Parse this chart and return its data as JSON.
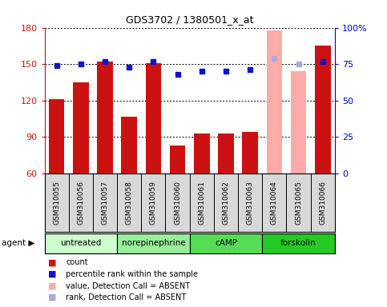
{
  "title": "GDS3702 / 1380501_x_at",
  "samples": [
    "GSM310055",
    "GSM310056",
    "GSM310057",
    "GSM310058",
    "GSM310059",
    "GSM310060",
    "GSM310061",
    "GSM310062",
    "GSM310063",
    "GSM310064",
    "GSM310065",
    "GSM310066"
  ],
  "bar_values": [
    121,
    135,
    152,
    107,
    151,
    83,
    93,
    93,
    94,
    178,
    144,
    165
  ],
  "bar_absent": [
    false,
    false,
    false,
    false,
    false,
    false,
    false,
    false,
    false,
    true,
    true,
    false
  ],
  "percentile_values": [
    74,
    75,
    77,
    73,
    77,
    68,
    70,
    70,
    71,
    79,
    75,
    77
  ],
  "percentile_absent": [
    false,
    false,
    false,
    false,
    false,
    false,
    false,
    false,
    false,
    true,
    true,
    false
  ],
  "agents": [
    {
      "label": "untreated",
      "samples": [
        0,
        1,
        2
      ],
      "color": "#ccffcc"
    },
    {
      "label": "norepinephrine",
      "samples": [
        3,
        4,
        5
      ],
      "color": "#99ee99"
    },
    {
      "label": "cAMP",
      "samples": [
        6,
        7,
        8
      ],
      "color": "#55dd55"
    },
    {
      "label": "forskolin",
      "samples": [
        9,
        10,
        11
      ],
      "color": "#22cc22"
    }
  ],
  "left_ylim": [
    60,
    180
  ],
  "left_yticks": [
    60,
    90,
    120,
    150,
    180
  ],
  "right_ylim": [
    0,
    100
  ],
  "right_yticks": [
    0,
    25,
    50,
    75,
    100
  ],
  "bar_color": "#cc1111",
  "bar_absent_color": "#ffaaaa",
  "dot_color": "#1111cc",
  "dot_absent_color": "#aaaadd",
  "bg_color": "#ffffff",
  "grid_color": "#000000",
  "left_axis_color": "#cc1111",
  "right_axis_color": "#0000cc",
  "legend_items": [
    {
      "color": "#cc1111",
      "label": "count"
    },
    {
      "color": "#1111cc",
      "label": "percentile rank within the sample"
    },
    {
      "color": "#ffaaaa",
      "label": "value, Detection Call = ABSENT"
    },
    {
      "color": "#aaaadd",
      "label": "rank, Detection Call = ABSENT"
    }
  ]
}
